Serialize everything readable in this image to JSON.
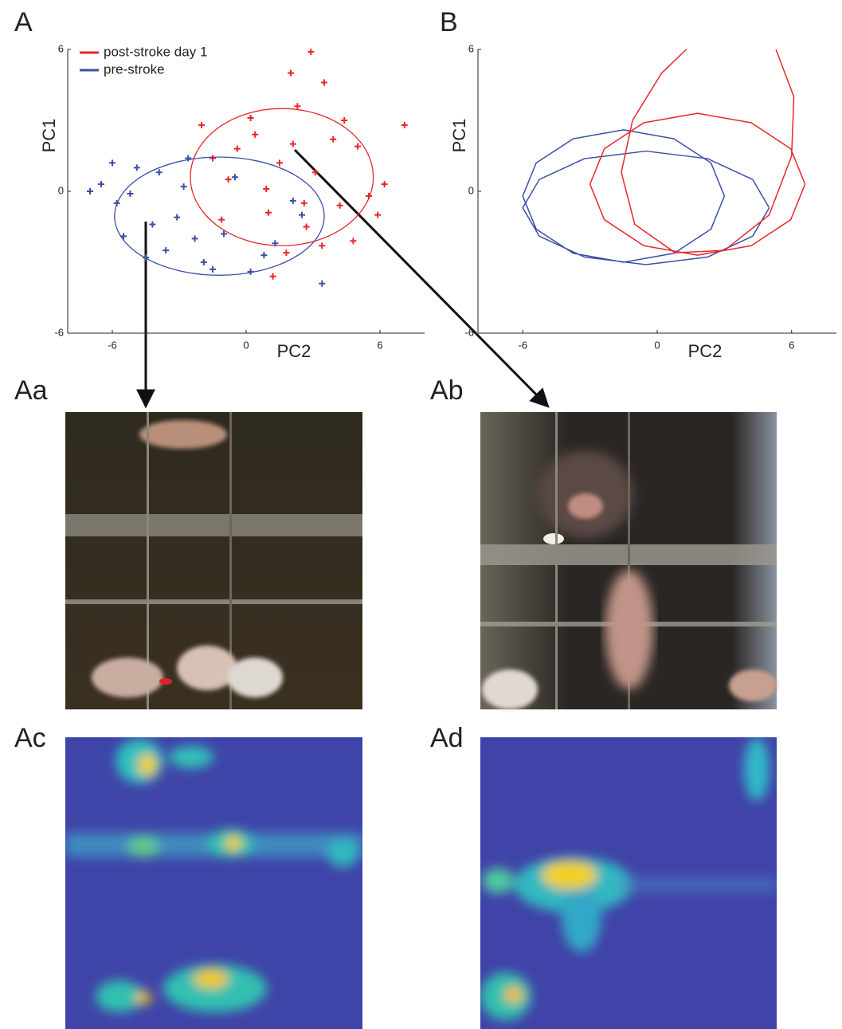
{
  "figure": {
    "panels": [
      "Aa",
      "Ab",
      "Ac",
      "Ad"
    ]
  },
  "chart_data": [
    {
      "type": "scatter",
      "panel": "A",
      "x_label": "PC2",
      "y_label": "PC1",
      "xlim": [
        -8,
        8
      ],
      "ylim": [
        -6,
        6
      ],
      "xticks": [
        -6,
        0,
        6
      ],
      "yticks": [
        -6,
        0,
        6
      ],
      "series": [
        {
          "name": "post-stroke day 1",
          "color": "#e8262a",
          "x": [
            1.5,
            2.3,
            0.4,
            -0.8,
            3.1,
            4.2,
            5.0,
            2.7,
            1.0,
            -1.5,
            0.2,
            3.5,
            4.8,
            6.2,
            2.0,
            -2.0,
            1.8,
            3.9,
            5.5,
            0.9,
            2.6,
            -0.4,
            4.4,
            7.1,
            2.9,
            1.2,
            3.4,
            -1.1,
            5.9,
            2.1
          ],
          "values": [
            1.2,
            3.6,
            2.4,
            0.5,
            0.8,
            -0.6,
            1.9,
            -1.5,
            -0.9,
            1.4,
            3.1,
            4.6,
            -2.1,
            0.3,
            5.0,
            2.8,
            -2.6,
            2.2,
            -0.2,
            0.1,
            -0.5,
            1.8,
            3.0,
            2.8,
            5.9,
            -3.6,
            -2.3,
            -1.2,
            -1.0,
            2.0
          ],
          "ellipse_center": [
            1.6,
            0.6
          ],
          "ellipse_radii": [
            4.1,
            2.9
          ]
        },
        {
          "name": "pre-stroke",
          "color": "#3a4fa8",
          "x": [
            -6.5,
            -5.8,
            -4.9,
            -4.2,
            -3.6,
            -2.8,
            -1.9,
            -1.0,
            0.2,
            1.3,
            2.5,
            -5.2,
            -3.9,
            -2.3,
            -0.5,
            -7.0,
            -6.0,
            -4.5,
            -3.1,
            -1.5,
            0.8,
            2.1,
            3.4,
            -5.5,
            -2.6
          ],
          "values": [
            0.3,
            -0.5,
            1.0,
            -1.4,
            -2.5,
            0.2,
            -3.0,
            -1.8,
            -3.4,
            -2.2,
            -1.0,
            -0.1,
            0.8,
            -2.0,
            0.6,
            0.0,
            1.2,
            -2.8,
            -1.1,
            -3.3,
            -2.7,
            -0.4,
            -3.9,
            -1.9,
            1.4
          ],
          "ellipse_center": [
            -1.2,
            -1.05
          ],
          "ellipse_radii": [
            4.7,
            2.5
          ]
        }
      ]
    },
    {
      "type": "line",
      "panel": "B",
      "x_label": "PC2",
      "y_label": "PC1",
      "xlim": [
        -8,
        8
      ],
      "ylim": [
        -6,
        6
      ],
      "xticks": [
        -6,
        0,
        6
      ],
      "yticks": [
        -6,
        0,
        6
      ],
      "series": [
        {
          "color": "#3a4fa8",
          "x": [
            5.0,
            4.26,
            2.25,
            -0.5,
            -3.25,
            -5.26,
            -6.0,
            -5.26,
            -3.25,
            -0.5,
            2.25,
            4.26,
            5.0,
            null,
            3.0,
            2.4,
            0.75,
            -1.5,
            -3.75,
            -5.4,
            -6.0,
            -5.4,
            -3.75,
            -1.5,
            0.75,
            2.4,
            3.0
          ],
          "values": [
            -0.7,
            0.5,
            1.38,
            1.7,
            1.38,
            0.5,
            -0.7,
            -1.9,
            -2.78,
            -3.1,
            -2.78,
            -1.9,
            -0.7,
            null,
            -0.2,
            1.2,
            2.22,
            2.6,
            2.22,
            1.2,
            -0.2,
            -1.6,
            -2.62,
            -3.0,
            -2.62,
            -1.6,
            -0.2
          ]
        },
        {
          "color": "#e8262a",
          "x": [
            6.6,
            5.96,
            4.2,
            1.8,
            -0.6,
            -2.36,
            -3.0,
            -2.36,
            -0.6,
            1.8,
            4.2,
            5.96,
            6.6,
            null,
            1.3,
            0.2,
            -1.1,
            -1.6,
            -1.0,
            0.8,
            3.0,
            5.0,
            6.0,
            6.1,
            5.3
          ],
          "values": [
            0.3,
            1.8,
            2.9,
            3.3,
            2.9,
            1.8,
            0.3,
            -1.2,
            -2.3,
            -2.7,
            -2.3,
            -1.2,
            0.3,
            null,
            6.0,
            5.0,
            3.0,
            0.8,
            -1.4,
            -2.6,
            -2.5,
            -1.0,
            1.5,
            4.0,
            6.0
          ]
        }
      ]
    }
  ]
}
